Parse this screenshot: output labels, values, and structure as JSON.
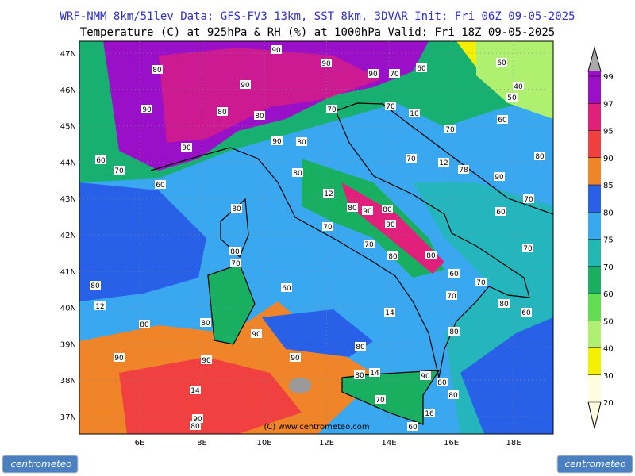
{
  "header": {
    "line1": "WRF-NMM 8km/51lev  Data: GFS-FV3 13km, SST 8km, 3DVAR  Init: Fri 06Z 09-05-2025",
    "line2": "Temperature (C) at 925hPa & RH (%) at 1000hPa  Valid: Fri 18Z 09-05-2025"
  },
  "map": {
    "lat_ticks": [
      {
        "value": 47,
        "label": "47N"
      },
      {
        "value": 46,
        "label": "46N"
      },
      {
        "value": 45,
        "label": "45N"
      },
      {
        "value": 44,
        "label": "44N"
      },
      {
        "value": 43,
        "label": "43N"
      },
      {
        "value": 42,
        "label": "42N"
      },
      {
        "value": 41,
        "label": "41N"
      },
      {
        "value": 40,
        "label": "40N"
      },
      {
        "value": 39,
        "label": "39N"
      },
      {
        "value": 38,
        "label": "38N"
      },
      {
        "value": 37,
        "label": "37N"
      }
    ],
    "lon_ticks": [
      {
        "value": 6,
        "label": "6E"
      },
      {
        "value": 8,
        "label": "8E"
      },
      {
        "value": 10,
        "label": "10E"
      },
      {
        "value": 12,
        "label": "12E"
      },
      {
        "value": 14,
        "label": "14E"
      },
      {
        "value": 16,
        "label": "16E"
      },
      {
        "value": 18,
        "label": "18E"
      }
    ],
    "contour_labels": [
      90,
      90,
      80,
      90,
      70,
      60,
      60,
      40,
      50,
      90,
      90,
      80,
      70,
      70,
      10,
      80,
      60,
      70,
      90,
      90,
      80,
      60,
      70,
      70,
      12,
      78,
      90,
      80,
      80,
      12,
      60,
      80,
      80,
      90,
      80,
      60,
      70,
      90,
      70,
      80,
      70,
      80,
      80,
      70,
      70,
      60,
      70,
      80,
      60,
      70,
      12,
      14,
      80,
      60,
      80,
      80,
      90,
      80,
      80,
      90,
      90,
      90,
      80,
      14,
      90,
      80,
      14,
      80,
      70,
      16,
      90,
      60,
      80
    ],
    "copyright": "(C) www.centrometeo.com"
  },
  "colorbar": {
    "values": [
      20,
      30,
      40,
      50,
      60,
      70,
      75,
      80,
      85,
      90,
      95,
      97,
      99
    ],
    "colors": [
      "#fffde0",
      "#f5f000",
      "#b0f070",
      "#60dd50",
      "#18b060",
      "#20b8b0",
      "#38a8f0",
      "#2860e8",
      "#f08428",
      "#f04040",
      "#e0207a",
      "#9a10c8"
    ]
  },
  "logos": {
    "left": "centrometeo",
    "right": "centrometeo"
  }
}
